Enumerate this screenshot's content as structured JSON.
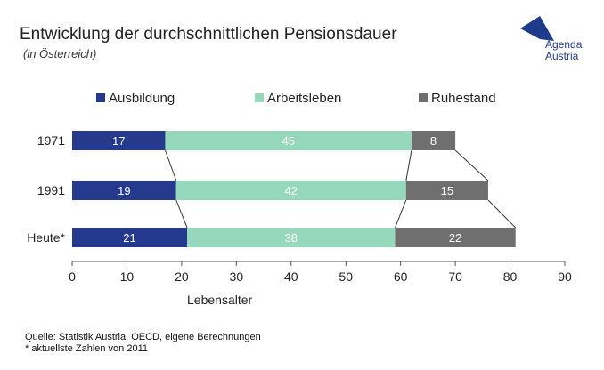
{
  "header": {
    "title": "Entwicklung der durchschnittlichen Pensionsdauer",
    "subtitle": "(in Österreich)"
  },
  "logo": {
    "line1": "Agenda",
    "line2": "Austria",
    "color": "#1f3b8c"
  },
  "footer": {
    "source": "Quelle: Statistik Austria, OECD, eigene Berechnungen",
    "note": "* aktuellste Zahlen von 2011"
  },
  "chart_data": {
    "type": "bar",
    "orientation": "horizontal",
    "stacked": true,
    "categories": [
      "1971",
      "1991",
      "Heute*"
    ],
    "series": [
      {
        "name": "Ausbildung",
        "values": [
          17,
          19,
          21
        ],
        "color": "#253a8c"
      },
      {
        "name": "Arbeitsleben",
        "values": [
          45,
          42,
          38
        ],
        "color": "#96d8bb"
      },
      {
        "name": "Ruhestand",
        "values": [
          8,
          15,
          22
        ],
        "color": "#6f6f6f"
      }
    ],
    "xlabel": "Lebensalter",
    "ylabel": "",
    "xlim": [
      0,
      90
    ],
    "xticks": [
      0,
      10,
      20,
      30,
      40,
      50,
      60,
      70,
      80,
      90
    ],
    "legend_position": "top",
    "grid": false
  }
}
